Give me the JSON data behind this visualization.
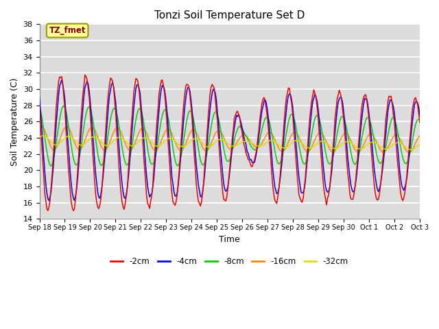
{
  "title": "Tonzi Soil Temperature Set D",
  "xlabel": "Time",
  "ylabel": "Soil Temperature (C)",
  "ylim": [
    14,
    38
  ],
  "yticks": [
    14,
    16,
    18,
    20,
    22,
    24,
    26,
    28,
    30,
    32,
    34,
    36,
    38
  ],
  "annotation_text": "TZ_fmet",
  "annotation_box_color": "#FFFF99",
  "annotation_border_color": "#999900",
  "annotation_text_color": "#8B0000",
  "colors": {
    "-2cm": "#EE0000",
    "-4cm": "#0000EE",
    "-8cm": "#00CC00",
    "-16cm": "#FF8800",
    "-32cm": "#DDDD00"
  },
  "legend_labels": [
    "-2cm",
    "-4cm",
    "-8cm",
    "-16cm",
    "-32cm"
  ],
  "background_color": "#DCDCDC",
  "grid_color": "#FFFFFF",
  "tick_labels": [
    "Sep 18",
    "Sep 19",
    "Sep 20",
    "Sep 21",
    "Sep 22",
    "Sep 23",
    "Sep 24",
    "Sep 25",
    "Sep 26",
    "Sep 27",
    "Sep 28",
    "Sep 29",
    "Sep 30",
    "Oct 1",
    "Oct 2",
    "Oct 3"
  ],
  "num_days": 15,
  "n_per_day": 24
}
